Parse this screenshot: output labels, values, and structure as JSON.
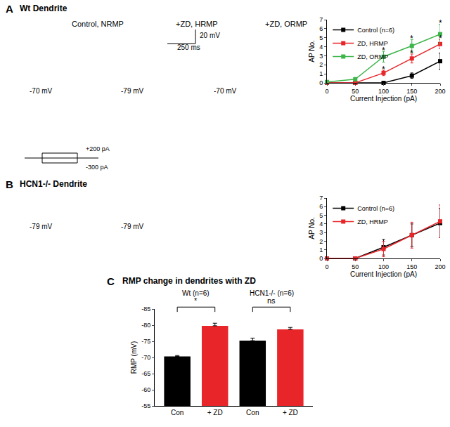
{
  "texts": [
    "A",
    "Wt Dendrite",
    "Control, NRMP",
    "+ZD, HRMP",
    "+ZD, ORMP",
    "20 mV",
    "250 ms",
    "-70 mV",
    "+200 pA",
    "-300 pA",
    "-79 mV",
    "-70 mV",
    "B",
    "HCN1-/- Dendrite",
    "-79 mV",
    "-79 mV",
    "C"
  ],
  "chart_data": [
    {
      "type": "line",
      "x_label": "Current Injection (pA)",
      "y_label": "AP No.",
      "x": [
        0,
        50,
        100,
        150,
        200
      ],
      "xlim": [
        0,
        200
      ],
      "xticks": [
        0,
        50,
        100,
        150,
        200
      ],
      "ylim": [
        0,
        7
      ],
      "yticks": [
        0,
        1,
        2,
        3,
        4,
        5,
        6,
        7
      ],
      "marker": "square",
      "legend": "upper left",
      "series": [
        {
          "name": "Control (n=6)",
          "color": "#000000",
          "values": [
            0,
            0,
            0,
            0.8,
            2.4
          ],
          "errors": [
            0,
            0,
            0,
            0.3,
            0.9
          ]
        },
        {
          "name": "ZD, HRMP",
          "color": "#e8262a",
          "values": [
            0,
            0,
            1.1,
            2.7,
            4.3
          ],
          "errors": [
            0,
            0,
            0.3,
            0.5,
            0.5
          ]
        },
        {
          "name": "ZD, ORMP",
          "color": "#3db54a",
          "values": [
            0.1,
            0.4,
            2.9,
            4.1,
            5.4
          ],
          "errors": [
            0.1,
            0.2,
            0.6,
            0.7,
            1.1
          ]
        }
      ],
      "annotations": [
        {
          "text": "*",
          "x": 100,
          "y": 3.6
        },
        {
          "text": "*",
          "x": 150,
          "y": 4.9
        },
        {
          "text": "*",
          "x": 200,
          "y": 6.6
        },
        {
          "text": "*",
          "x": 100,
          "y": 1.5
        },
        {
          "text": "*",
          "x": 150,
          "y": 3.3
        },
        {
          "text": "*",
          "x": 200,
          "y": 4.9
        }
      ]
    },
    {
      "type": "line",
      "x_label": "Current Injection (pA)",
      "y_label": "AP No.",
      "x": [
        0,
        50,
        100,
        150,
        200
      ],
      "xlim": [
        0,
        200
      ],
      "xticks": [
        0,
        50,
        100,
        150,
        200
      ],
      "ylim": [
        0,
        7
      ],
      "yticks": [
        0,
        1,
        2,
        3,
        4,
        5,
        6,
        7
      ],
      "marker": "square",
      "legend": "upper left",
      "series": [
        {
          "name": "Control (n=6)",
          "color": "#000000",
          "values": [
            0,
            0,
            1.3,
            2.7,
            4.1
          ],
          "errors": [
            0,
            0,
            0.9,
            1.3,
            1.7
          ]
        },
        {
          "name": "ZD, HRMP",
          "color": "#e8262a",
          "values": [
            0,
            0,
            1.1,
            2.7,
            4.3
          ],
          "errors": [
            0,
            0,
            0.9,
            1.5,
            1.9
          ]
        }
      ],
      "annotations": []
    },
    {
      "type": "bar",
      "title": "RMP change in dendrites with ZD",
      "y_label": "RMP (mV)",
      "categories": [
        "Con",
        "+ ZD",
        "Con",
        "+ ZD"
      ],
      "values": [
        -70.3,
        -79.8,
        -75.2,
        -78.7
      ],
      "errors": [
        0.3,
        0.8,
        0.8,
        0.6
      ],
      "colors": [
        "#000000",
        "#e8262a",
        "#000000",
        "#e8262a"
      ],
      "ylim": [
        -55,
        -85
      ],
      "yticks": [
        -55,
        -60,
        -65,
        -70,
        -75,
        -80,
        -85
      ],
      "groups": [
        {
          "label": "Wt (n=6)",
          "significance": "*"
        },
        {
          "label": "HCN1-/- (n=6)",
          "significance": "ns"
        }
      ]
    }
  ]
}
